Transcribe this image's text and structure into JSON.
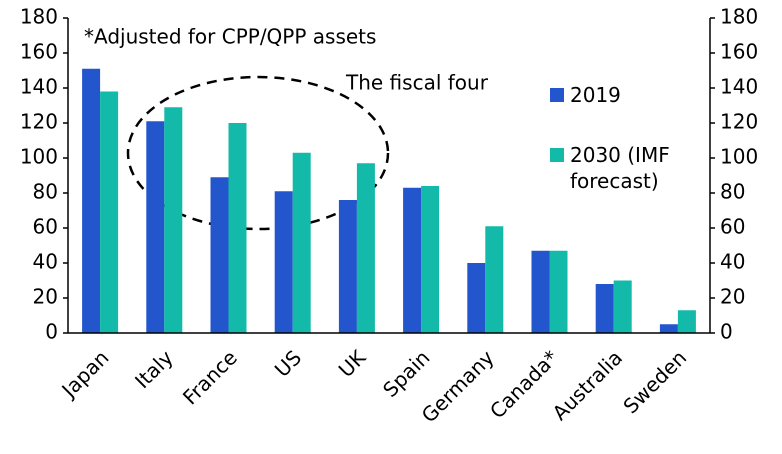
{
  "chart_data": {
    "type": "bar",
    "annotations": [
      "*Adjusted for CPP/QPP assets",
      "The fiscal four"
    ],
    "categories": [
      "Japan",
      "Italy",
      "France",
      "US",
      "UK",
      "Spain",
      "Germany",
      "Canada*",
      "Australia",
      "Sweden"
    ],
    "series": [
      {
        "name": "2019",
        "color": "#2356cc",
        "values": [
          151,
          121,
          89,
          81,
          76,
          83,
          40,
          47,
          28,
          5
        ]
      },
      {
        "name": "2030 (IMF forecast)",
        "color": "#13b9a9",
        "values": [
          138,
          129,
          120,
          103,
          97,
          84,
          61,
          47,
          30,
          13
        ]
      }
    ],
    "ylim": [
      0,
      180
    ],
    "yticks": [
      0,
      20,
      40,
      60,
      80,
      100,
      120,
      140,
      160,
      180
    ],
    "y2lim": [
      0,
      180
    ],
    "y2ticks": [
      0,
      20,
      40,
      60,
      80,
      100,
      120,
      140,
      160,
      180
    ],
    "grid": false,
    "legend": "right"
  }
}
